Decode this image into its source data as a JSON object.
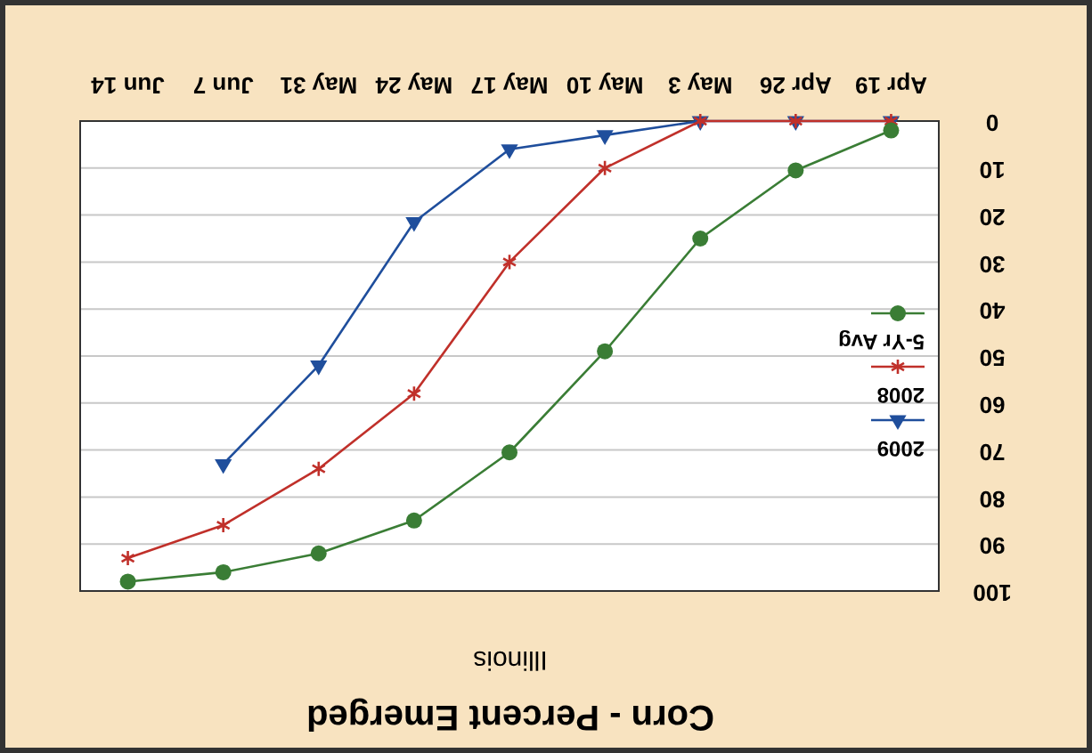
{
  "chart_data": {
    "type": "line",
    "title": "Corn - Percent Emerged",
    "subtitle": "Illinois",
    "categories": [
      "Jun 14",
      "Jun 7",
      "May 31",
      "May 24",
      "May 17",
      "May 10",
      "May 3",
      "Apr 26",
      "Apr 19"
    ],
    "series": [
      {
        "name": "2009",
        "color": "#1f4e9c",
        "marker": "triangle",
        "values": [
          null,
          73,
          52,
          21.5,
          6,
          3,
          0,
          0,
          0
        ]
      },
      {
        "name": "2008",
        "color": "#c0302a",
        "marker": "cross",
        "values": [
          93,
          86,
          74,
          58,
          30,
          10,
          0,
          0,
          0
        ]
      },
      {
        "name": "5-Yr Avg",
        "color": "#3a7d35",
        "marker": "circle",
        "values": [
          98,
          96,
          92,
          85,
          70.5,
          49,
          25,
          10.5,
          2
        ]
      }
    ],
    "ylim": [
      100,
      0
    ],
    "yticks": [
      0,
      10,
      20,
      30,
      40,
      50,
      60,
      70,
      80,
      90,
      100
    ],
    "grid": "y",
    "legend": "right"
  }
}
